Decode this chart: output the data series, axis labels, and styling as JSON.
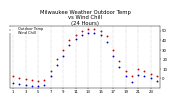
{
  "title": "Milwaukee Weather Outdoor Temp\nvs Wind Chill\n(24 Hours)",
  "title_fontsize": 3.8,
  "bg_color": "#ffffff",
  "plot_bg": "#ffffff",
  "grid_color": "#888888",
  "temp_color": "#cc0000",
  "wind_chill_color": "#0000cc",
  "hours": [
    1,
    2,
    3,
    4,
    5,
    6,
    7,
    8,
    9,
    10,
    11,
    12,
    13,
    14,
    15,
    16,
    17,
    18,
    19,
    20,
    21,
    22,
    23,
    24
  ],
  "x_ticks": [
    1,
    3,
    5,
    7,
    9,
    11,
    13,
    15,
    17,
    19,
    21,
    23
  ],
  "x_tick_labels": [
    "1",
    "3",
    "5",
    "7",
    "9",
    "11",
    "13",
    "15",
    "17",
    "19",
    "21",
    "23"
  ],
  "ylim": [
    -10,
    55
  ],
  "y_ticks": [
    0,
    10,
    20,
    30,
    40,
    50
  ],
  "y_tick_labels": [
    "0",
    "10",
    "20",
    "30",
    "40",
    "50"
  ],
  "temp_values": [
    2,
    0,
    -1,
    -2,
    -3,
    -2,
    8,
    20,
    30,
    40,
    46,
    50,
    52,
    52,
    50,
    44,
    30,
    18,
    8,
    2,
    10,
    8,
    5,
    2
  ],
  "wind_chill_values": [
    -5,
    -6,
    -7,
    -8,
    -8,
    -7,
    3,
    14,
    24,
    35,
    41,
    46,
    48,
    48,
    46,
    38,
    24,
    12,
    2,
    -4,
    4,
    2,
    0,
    -3
  ],
  "vgrid_positions": [
    1,
    3,
    5,
    7,
    9,
    11,
    13,
    15,
    17,
    19,
    21,
    23
  ],
  "marker_size": 1.8,
  "tick_fontsize": 2.8,
  "legend_entries": [
    "Outdoor Temp",
    "Wind Chill"
  ],
  "legend_fontsize": 2.5
}
